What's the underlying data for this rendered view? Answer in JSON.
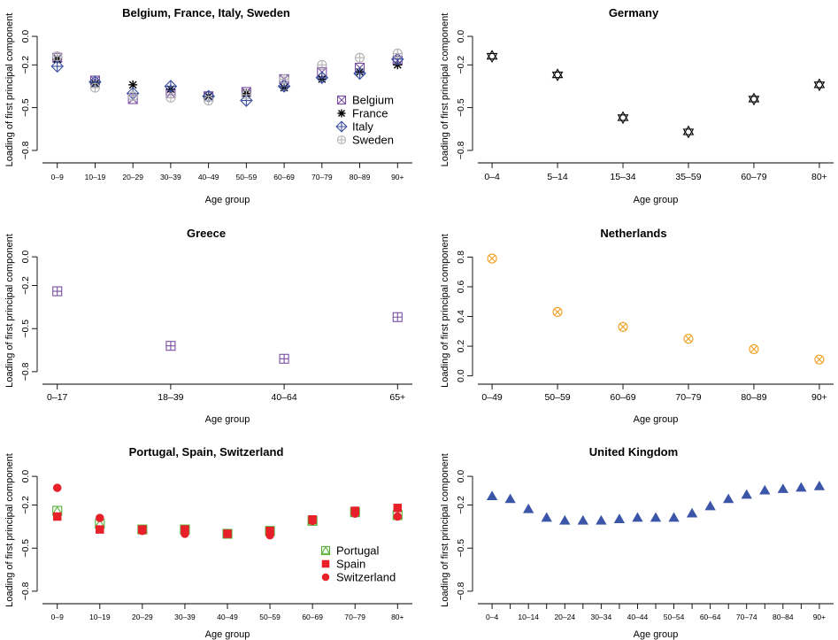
{
  "colors": {
    "Belgium": "#7a4ea3",
    "France": "#000000",
    "Italy": "#3b4fa0",
    "Sweden": "#b3b3b3",
    "Germany": "#000000",
    "Greece": "#7a4ea3",
    "Netherlands": "#f0a020",
    "Portugal": "#55b235",
    "Spain": "#e8202a",
    "Switzerland": "#e8202a",
    "United Kingdom": "#3b56a8"
  },
  "chart_data": [
    {
      "type": "scatter",
      "title": "Belgium, France, Italy, Sweden",
      "xlabel": "Age group",
      "ylabel": "Loading of first principal component",
      "categories": [
        "0–9",
        "10–19",
        "20–29",
        "30–39",
        "40–49",
        "50–59",
        "60–69",
        "70–79",
        "80–89",
        "90+"
      ],
      "ylim": [
        -0.85,
        0.05
      ],
      "yticks": [
        0.0,
        -0.2,
        -0.5,
        -0.8
      ],
      "yticklabels": [
        "0.0",
        "−0.2",
        "−0.5",
        "−0.8"
      ],
      "legend": "right",
      "series": [
        {
          "name": "Belgium",
          "marker": "sq-x",
          "values": [
            -0.15,
            -0.31,
            -0.44,
            -0.4,
            -0.42,
            -0.39,
            -0.3,
            -0.25,
            -0.22,
            -0.17
          ]
        },
        {
          "name": "France",
          "marker": "asterisk",
          "values": [
            -0.16,
            -0.33,
            -0.34,
            -0.37,
            -0.42,
            -0.4,
            -0.36,
            -0.3,
            -0.25,
            -0.2
          ]
        },
        {
          "name": "Italy",
          "marker": "diamond-plus",
          "values": [
            -0.21,
            -0.32,
            -0.4,
            -0.35,
            -0.42,
            -0.45,
            -0.35,
            -0.29,
            -0.26,
            -0.16
          ]
        },
        {
          "name": "Sweden",
          "marker": "circle-plus",
          "values": [
            -0.14,
            -0.36,
            -0.42,
            -0.43,
            -0.45,
            -0.41,
            -0.3,
            -0.2,
            -0.15,
            -0.12
          ]
        }
      ]
    },
    {
      "type": "scatter",
      "title": "Germany",
      "xlabel": "Age group",
      "ylabel": "Loading of first principal component",
      "categories": [
        "0–4",
        "5–14",
        "15–34",
        "35–59",
        "60–79",
        "80+"
      ],
      "ylim": [
        -0.85,
        0.05
      ],
      "yticks": [
        0.0,
        -0.2,
        -0.5,
        -0.8
      ],
      "yticklabels": [
        "0.0",
        "−0.2",
        "−0.5",
        "−0.8"
      ],
      "series": [
        {
          "name": "Germany",
          "marker": "star",
          "values": [
            -0.14,
            -0.27,
            -0.57,
            -0.67,
            -0.44,
            -0.34
          ]
        }
      ]
    },
    {
      "type": "scatter",
      "title": "Greece",
      "xlabel": "Age group",
      "ylabel": "Loading of first principal component",
      "categories": [
        "0–17",
        "18–39",
        "40–64",
        "65+"
      ],
      "ylim": [
        -0.85,
        0.05
      ],
      "yticks": [
        0.0,
        -0.2,
        -0.5,
        -0.8
      ],
      "yticklabels": [
        "0.0",
        "−0.2",
        "−0.5",
        "−0.8"
      ],
      "series": [
        {
          "name": "Greece",
          "marker": "sq-plus",
          "values": [
            -0.24,
            -0.62,
            -0.71,
            -0.42
          ]
        }
      ]
    },
    {
      "type": "scatter",
      "title": "Netherlands",
      "xlabel": "Age group",
      "ylabel": "Loading of first principal component",
      "categories": [
        "0–49",
        "50–59",
        "60–69",
        "70–79",
        "80–89",
        "90+"
      ],
      "ylim": [
        -0.02,
        0.85
      ],
      "yticks": [
        0.0,
        0.2,
        0.4,
        0.6,
        0.8
      ],
      "yticklabels": [
        "0.0",
        "0.2",
        "0.4",
        "0.6",
        "0.8"
      ],
      "series": [
        {
          "name": "Netherlands",
          "marker": "circle-x",
          "values": [
            0.79,
            0.43,
            0.33,
            0.25,
            0.18,
            0.11
          ]
        }
      ]
    },
    {
      "type": "scatter",
      "title": "Portugal, Spain, Switzerland",
      "xlabel": "Age group",
      "ylabel": "Loading of first principal component",
      "categories": [
        "0–9",
        "10–19",
        "20–29",
        "30–39",
        "40–49",
        "50–59",
        "60–69",
        "70–79",
        "80+"
      ],
      "ylim": [
        -0.85,
        0.05
      ],
      "yticks": [
        0.0,
        -0.2,
        -0.5,
        -0.8
      ],
      "yticklabels": [
        "0.0",
        "−0.2",
        "−0.5",
        "−0.8"
      ],
      "legend": "bottom-right",
      "series": [
        {
          "name": "Portugal",
          "marker": "triangle-open",
          "values": [
            -0.24,
            -0.33,
            -0.37,
            -0.37,
            -0.4,
            -0.38,
            -0.31,
            -0.25,
            -0.27
          ]
        },
        {
          "name": "Spain",
          "marker": "square",
          "values": [
            -0.28,
            -0.37,
            -0.37,
            -0.37,
            -0.4,
            -0.38,
            -0.3,
            -0.24,
            -0.22
          ]
        },
        {
          "name": "Switzerland",
          "marker": "circle",
          "values": [
            -0.08,
            -0.29,
            -0.38,
            -0.4,
            -0.4,
            -0.41,
            -0.31,
            -0.26,
            -0.28
          ]
        }
      ]
    },
    {
      "type": "scatter",
      "title": "United Kingdom",
      "xlabel": "Age group",
      "ylabel": "Loading of first principal component",
      "categories": [
        "0–4",
        "5–9",
        "10–14",
        "15–19",
        "20–24",
        "25–29",
        "30–34",
        "35–39",
        "40–44",
        "45–49",
        "50–54",
        "55–59",
        "60–64",
        "65–69",
        "70–74",
        "75–79",
        "80–84",
        "85–89",
        "90+"
      ],
      "xticklabels": [
        "0–4",
        "",
        "10–14",
        "",
        "20–24",
        "",
        "30–34",
        "",
        "40–44",
        "",
        "50–54",
        "",
        "60–64",
        "",
        "70–74",
        "",
        "80–84",
        "",
        "90+"
      ],
      "ylim": [
        -0.85,
        0.05
      ],
      "yticks": [
        0.0,
        -0.2,
        -0.5,
        -0.8
      ],
      "yticklabels": [
        "0.0",
        "−0.2",
        "−0.5",
        "−0.8"
      ],
      "series": [
        {
          "name": "United Kingdom",
          "marker": "triangle-filled",
          "values": [
            -0.14,
            -0.16,
            -0.23,
            -0.29,
            -0.31,
            -0.31,
            -0.31,
            -0.3,
            -0.29,
            -0.29,
            -0.29,
            -0.26,
            -0.21,
            -0.16,
            -0.13,
            -0.1,
            -0.09,
            -0.08,
            -0.07
          ]
        }
      ]
    }
  ]
}
